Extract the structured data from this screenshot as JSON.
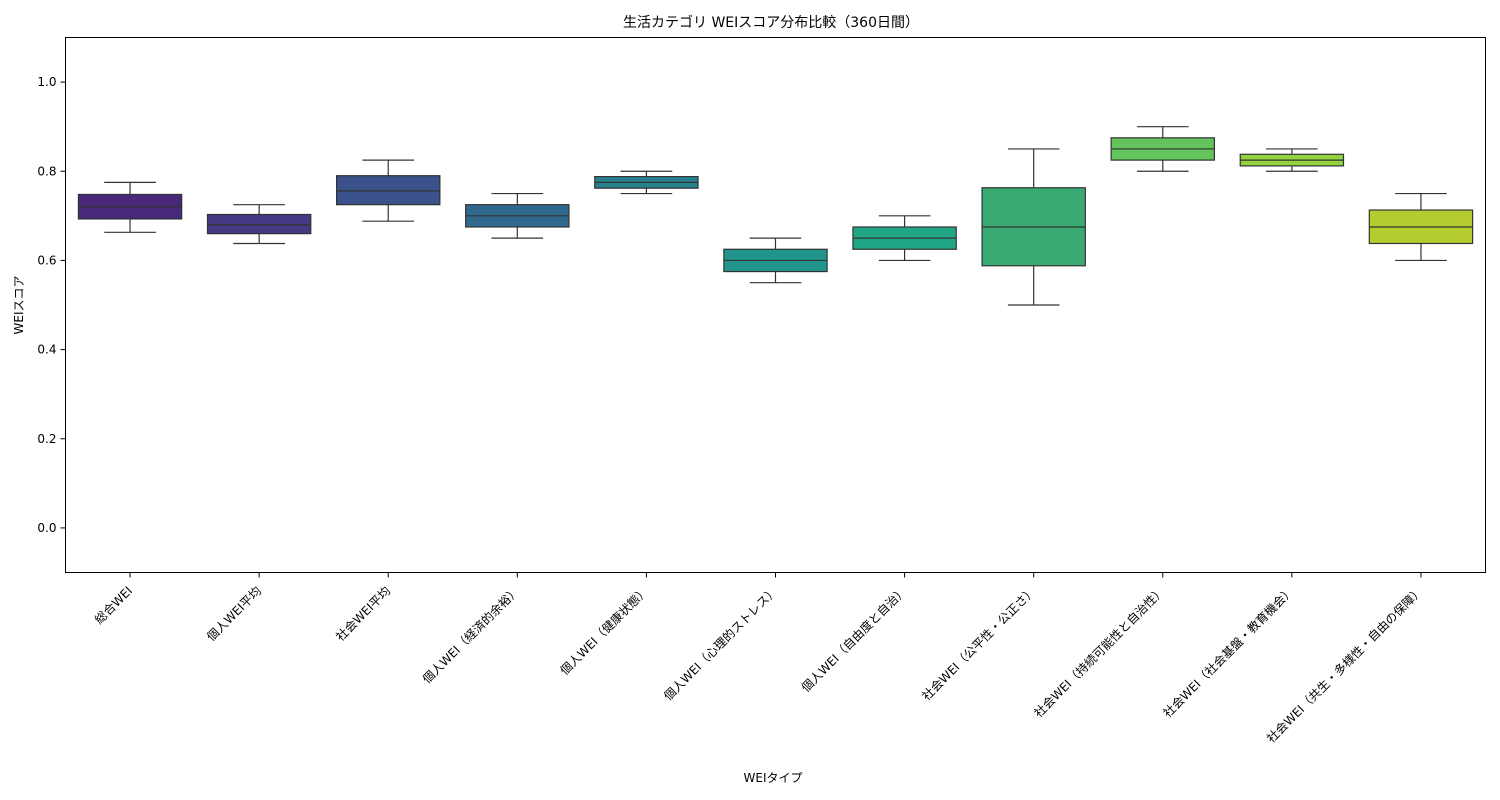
{
  "chart_data": {
    "type": "box",
    "title": "生活カテゴリ WEIスコア分布比較（360日間）",
    "xlabel": "WEIタイプ",
    "ylabel": "WEIスコア",
    "ylim": [
      -0.1,
      1.1
    ],
    "yticks": [
      "0.0",
      "0.2",
      "0.4",
      "0.6",
      "0.8",
      "1.0"
    ],
    "grid": false,
    "categories": [
      "総合WEI",
      "個人WEI平均",
      "社会WEI平均",
      "個人WEI（経済的余裕）",
      "個人WEI（健康状態）",
      "個人WEI（心理的ストレス）",
      "個人WEI（自由度と自治）",
      "社会WEI（公平性・公正さ）",
      "社会WEI（持続可能性と自治性）",
      "社会WEI（社会基盤・教育機会）",
      "社会WEI（共生・多様性・自由の保障）"
    ],
    "boxes": [
      {
        "min": 0.663,
        "q1": 0.693,
        "median": 0.72,
        "q3": 0.748,
        "max": 0.775,
        "color": "#482979"
      },
      {
        "min": 0.638,
        "q1": 0.66,
        "median": 0.68,
        "q3": 0.703,
        "max": 0.725,
        "color": "#443983"
      },
      {
        "min": 0.688,
        "q1": 0.725,
        "median": 0.756,
        "q3": 0.79,
        "max": 0.825,
        "color": "#3b518b"
      },
      {
        "min": 0.65,
        "q1": 0.675,
        "median": 0.7,
        "q3": 0.725,
        "max": 0.75,
        "color": "#31688e"
      },
      {
        "min": 0.75,
        "q1": 0.762,
        "median": 0.775,
        "q3": 0.788,
        "max": 0.8,
        "color": "#26818e"
      },
      {
        "min": 0.55,
        "q1": 0.575,
        "median": 0.6,
        "q3": 0.625,
        "max": 0.65,
        "color": "#1f958b"
      },
      {
        "min": 0.6,
        "q1": 0.625,
        "median": 0.65,
        "q3": 0.675,
        "max": 0.7,
        "color": "#21a685"
      },
      {
        "min": 0.5,
        "q1": 0.588,
        "median": 0.675,
        "q3": 0.763,
        "max": 0.85,
        "color": "#3aaa73"
      },
      {
        "min": 0.8,
        "q1": 0.825,
        "median": 0.85,
        "q3": 0.875,
        "max": 0.9,
        "color": "#63c35c"
      },
      {
        "min": 0.8,
        "q1": 0.812,
        "median": 0.825,
        "q3": 0.838,
        "max": 0.85,
        "color": "#93d33d"
      },
      {
        "min": 0.6,
        "q1": 0.638,
        "median": 0.675,
        "q3": 0.713,
        "max": 0.75,
        "color": "#b5cc30"
      }
    ]
  }
}
